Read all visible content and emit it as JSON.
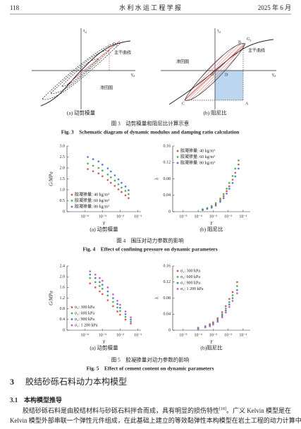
{
  "header": {
    "page": "118",
    "journal": "水 利 水 运 工 程 学 报",
    "date": "2025 年 6 月"
  },
  "fig3": {
    "left": {
      "y_axis": {
        "main": "τ",
        "sub": "d"
      },
      "x_axis": {
        "main": "γ",
        "sub": "d"
      },
      "slope": {
        "main": "G",
        "sub": "1"
      },
      "backbone": "主干曲线",
      "loop": "滞回圈",
      "subcaption": "(a) 动剪模量"
    },
    "right": {
      "y_axis": {
        "main": "τ",
        "sub": "d"
      },
      "x_axis": {
        "main": "γ",
        "sub": "d"
      },
      "slope": {
        "main": "G",
        "sub": "1"
      },
      "backbone": "主干曲线",
      "loop": "滞回圈",
      "points": [
        "B",
        "D",
        "O",
        "C",
        "A"
      ],
      "subcaption": "(b) 阻尼比"
    },
    "caption_cn": "图 3　动剪模量和阻尼比计算示意",
    "caption_en": "Fig. 3　Schematic diagram of dynamic modulus and damping ratio calculation"
  },
  "fig4": {
    "caption_cn": "图 4　围压对动力参数的影响",
    "caption_en": "Fig. 4　Effect of confining pressure on dynamic parameters"
  },
  "fig5": {
    "caption_cn": "图 5　胶凝掺量对动力参数的影响",
    "caption_en": "Fig. 5　Effect of cement content on dynamic parameters"
  },
  "chart_data": [
    {
      "type": "scatter",
      "log_x": true,
      "legend_position": "lower left",
      "subcaption": "(a) 动剪模量",
      "x_label": "γ",
      "y_label": "G/MPa",
      "xlim": [
        1e-05,
        0.15
      ],
      "ylim": [
        0,
        3.0
      ],
      "xticks": [
        {
          "value": 0.0001,
          "label": "10⁻⁴"
        },
        {
          "value": 0.001,
          "label": "10⁻³"
        },
        {
          "value": 0.01,
          "label": "10⁻²"
        },
        {
          "value": 0.1,
          "label": "10⁻¹"
        }
      ],
      "yticks": [
        0,
        0.5,
        {
          "value": 1.0,
          "label": "1.0"
        },
        1.5,
        {
          "value": 2.0,
          "label": "2.0"
        },
        2.5,
        {
          "value": 3.0,
          "label": "3.0"
        }
      ],
      "x": [
        0.00015,
        0.0003,
        0.0006,
        0.001,
        0.002,
        0.003,
        0.005,
        0.008,
        0.012,
        0.02,
        0.03
      ],
      "series": [
        {
          "name": "胶凝掺量: 40 kg/m³",
          "color": "#d9534f",
          "values": [
            1.95,
            1.85,
            1.75,
            1.62,
            1.45,
            1.32,
            1.18,
            1.02,
            0.9,
            0.75,
            0.62
          ]
        },
        {
          "name": "胶凝掺量: 60 kg/m³",
          "color": "#4caf50",
          "values": [
            2.2,
            2.1,
            2.0,
            1.88,
            1.7,
            1.57,
            1.42,
            1.25,
            1.1,
            0.95,
            0.8
          ]
        },
        {
          "name": "胶凝掺量: 80 kg/m³",
          "color": "#4a7bd0",
          "values": [
            2.5,
            2.4,
            2.3,
            2.15,
            1.98,
            1.84,
            1.66,
            1.48,
            1.32,
            1.15,
            0.98
          ]
        }
      ]
    },
    {
      "type": "scatter",
      "log_x": true,
      "legend_position": "upper left",
      "subcaption": "(b) 阻尼比",
      "x_label": "γ",
      "y_label": "λ",
      "xlim": [
        2e-06,
        0.3
      ],
      "ylim": [
        0,
        0.16
      ],
      "xticks": [
        {
          "value": 1e-05,
          "label": "10⁻⁵"
        },
        {
          "value": 0.0001,
          "label": "10⁻⁴"
        },
        {
          "value": 0.001,
          "label": "10⁻³"
        },
        {
          "value": 0.01,
          "label": "10⁻²"
        },
        {
          "value": 0.1,
          "label": "10⁻¹"
        }
      ],
      "yticks": [
        0,
        0.04,
        0.08,
        0.12,
        0.16
      ],
      "x": [
        0.0002,
        0.0004,
        0.0008,
        0.0015,
        0.003,
        0.005,
        0.008,
        0.012,
        0.02,
        0.03,
        0.05
      ],
      "series": [
        {
          "name": "胶凝掺量: 40 kg/m³",
          "color": "#d9534f",
          "values": [
            0.005,
            0.008,
            0.012,
            0.018,
            0.028,
            0.038,
            0.05,
            0.062,
            0.078,
            0.095,
            0.115
          ]
        },
        {
          "name": "胶凝掺量: 60 kg/m³",
          "color": "#4caf50",
          "values": [
            0.006,
            0.009,
            0.014,
            0.021,
            0.032,
            0.043,
            0.056,
            0.07,
            0.087,
            0.105,
            0.125
          ]
        },
        {
          "name": "胶凝掺量: 80 kg/m³",
          "color": "#4a7bd0",
          "values": [
            0.004,
            0.007,
            0.01,
            0.015,
            0.024,
            0.033,
            0.044,
            0.056,
            0.07,
            0.086,
            0.105
          ]
        }
      ]
    },
    {
      "type": "scatter",
      "log_x": true,
      "legend_position": "lower left",
      "subcaption": "(a) 动剪模量",
      "x_label": "γ",
      "y_label": "G/MPa",
      "xlim": [
        1e-05,
        0.15
      ],
      "ylim": [
        0,
        2.4
      ],
      "xticks": [
        {
          "value": 0.0001,
          "label": "10⁻⁴"
        },
        {
          "value": 0.001,
          "label": "10⁻³"
        },
        {
          "value": 0.01,
          "label": "10⁻²"
        },
        {
          "value": 0.1,
          "label": "10⁻¹"
        }
      ],
      "yticks": [
        0,
        0.4,
        0.8,
        1.2,
        1.6,
        {
          "value": 2.0,
          "label": "2.0"
        },
        2.4
      ],
      "x": [
        0.0002,
        0.0004,
        0.0007,
        0.001,
        0.002,
        0.004,
        0.007,
        0.01,
        0.02,
        0.04
      ],
      "series": [
        {
          "name": "σ₃: 300 kPa",
          "color": "#d9534f",
          "values": [
            1.75,
            1.6,
            1.45,
            1.35,
            1.12,
            0.9,
            0.7,
            0.58,
            0.4,
            0.25
          ]
        },
        {
          "name": "σ₃: 600 kPa",
          "color": "#4caf50",
          "values": [
            1.95,
            1.8,
            1.65,
            1.55,
            1.3,
            1.06,
            0.85,
            0.72,
            0.5,
            0.32
          ]
        },
        {
          "name": "σ₃: 900 kPa",
          "color": "#4a7bd0",
          "values": [
            2.08,
            1.95,
            1.8,
            1.7,
            1.45,
            1.2,
            0.98,
            0.84,
            0.6,
            0.4
          ]
        },
        {
          "name": "σ₃: 1 200 kPa",
          "color": "#c060c0",
          "values": [
            2.2,
            2.08,
            1.95,
            1.85,
            1.6,
            1.34,
            1.1,
            0.95,
            0.7,
            0.48
          ]
        }
      ]
    },
    {
      "type": "scatter",
      "log_x": true,
      "legend_position": "upper left",
      "subcaption": "(b)阻尼比",
      "x_label": "γ",
      "y_label": "λ",
      "xlim": [
        2e-06,
        0.3
      ],
      "ylim": [
        0,
        0.16
      ],
      "xticks": [
        {
          "value": 1e-05,
          "label": "10⁻⁵"
        },
        {
          "value": 0.0001,
          "label": "10⁻⁴"
        },
        {
          "value": 0.001,
          "label": "10⁻³"
        },
        {
          "value": 0.01,
          "label": "10⁻²"
        },
        {
          "value": 0.1,
          "label": "10⁻¹"
        }
      ],
      "yticks": [
        0,
        0.04,
        0.08,
        0.12,
        0.16
      ],
      "x": [
        0.0001,
        0.0003,
        0.0006,
        0.001,
        0.002,
        0.004,
        0.007,
        0.012,
        0.02,
        0.04
      ],
      "series": [
        {
          "name": "σ₃: 300 kPa",
          "color": "#d9534f",
          "values": [
            0.006,
            0.01,
            0.015,
            0.02,
            0.03,
            0.045,
            0.06,
            0.078,
            0.095,
            0.12
          ]
        },
        {
          "name": "σ₃: 600 kPa",
          "color": "#4caf50",
          "values": [
            0.005,
            0.009,
            0.013,
            0.018,
            0.027,
            0.04,
            0.054,
            0.07,
            0.087,
            0.11
          ]
        },
        {
          "name": "σ₃: 900 kPa",
          "color": "#4a7bd0",
          "values": [
            0.004,
            0.008,
            0.012,
            0.016,
            0.024,
            0.036,
            0.049,
            0.064,
            0.08,
            0.1
          ]
        },
        {
          "name": "σ₃: 1 200 kPa",
          "color": "#c060c0",
          "values": [
            0.003,
            0.007,
            0.01,
            0.014,
            0.021,
            0.032,
            0.044,
            0.058,
            0.073,
            0.092
          ]
        }
      ]
    }
  ],
  "section": {
    "number": "3",
    "title": "胶结砂砾石料动力本构模型"
  },
  "subsection": {
    "number": "3.1",
    "title": "本构模型推导"
  },
  "paragraph": {
    "line1": {
      "text": "胶结砂砾石料是由胶结材料与砂砾石料拌合而成，具有明显的损伤特性",
      "sup": "[18]",
      "rest": "。广义 Kelvin 模型是在"
    },
    "line2": "Kelvin 模型外部串联一个弹性元件组成，在此基础上建立的等效黏弹性本构模型在岩土工程的动力计算中"
  }
}
